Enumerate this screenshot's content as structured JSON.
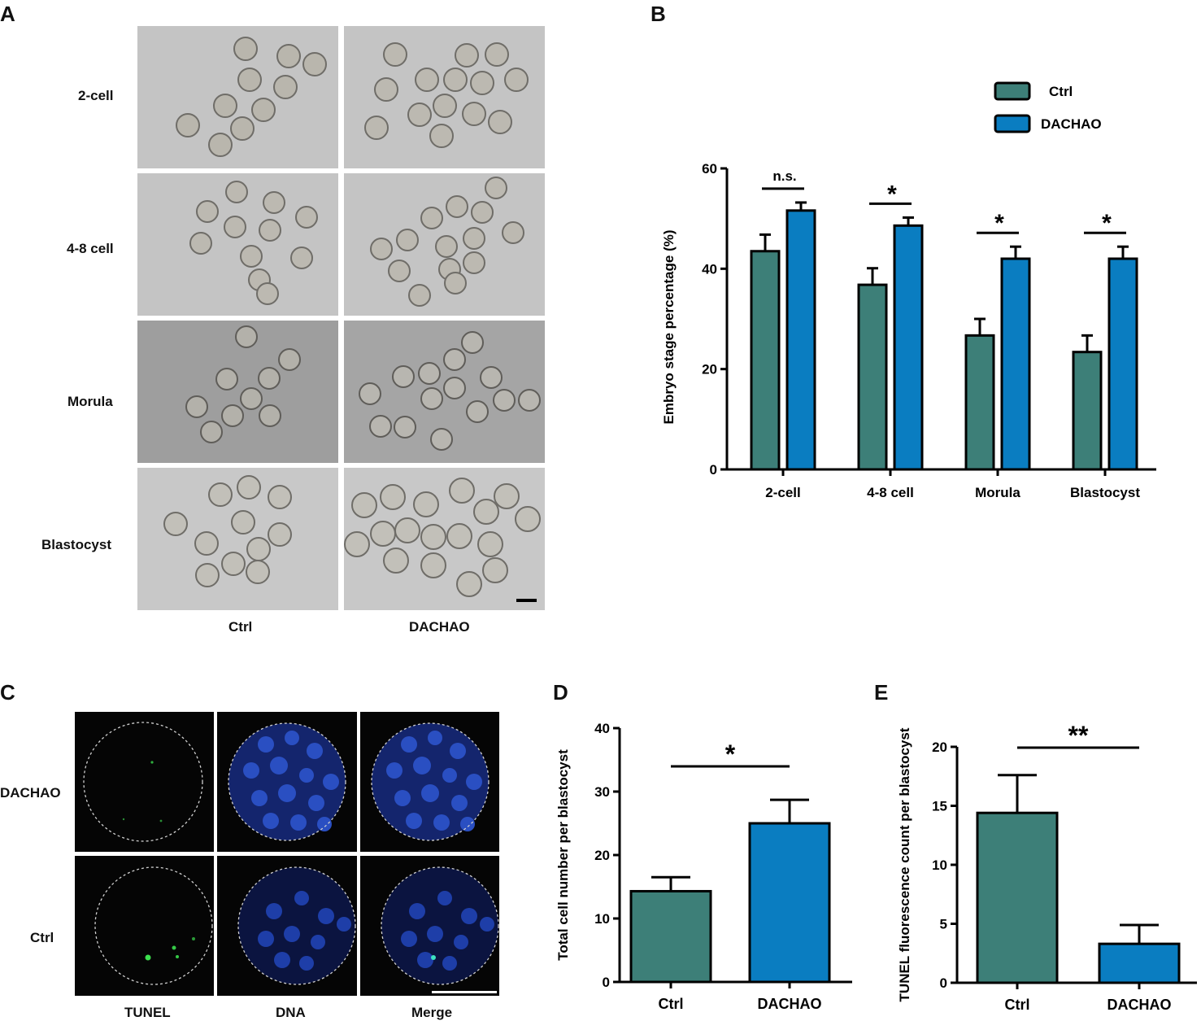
{
  "panels": {
    "a": "A",
    "b": "B",
    "c": "C",
    "d": "D",
    "e": "E"
  },
  "panel_a": {
    "row_labels": [
      "2-cell",
      "4-8 cell",
      "Morula",
      "Blastocyst"
    ],
    "col_labels": [
      "Ctrl",
      "DACHAO"
    ]
  },
  "panel_c": {
    "row_labels": [
      "DACHAO",
      "Ctrl"
    ],
    "col_labels": [
      "TUNEL",
      "DNA",
      "Merge"
    ]
  },
  "colors": {
    "ctrl": "#3d7f78",
    "dachao": "#0a7dc1"
  },
  "chart_data": [
    {
      "id": "B",
      "type": "bar",
      "ylabel": "Embryo stage percentage (%)",
      "ylim": [
        0,
        60
      ],
      "yticks": [
        0,
        20,
        40,
        60
      ],
      "categories": [
        "2-cell",
        "4-8 cell",
        "Morula",
        "Blastocyst"
      ],
      "series": [
        {
          "name": "Ctrl",
          "values": [
            43.5,
            36.8,
            26.7,
            23.4
          ],
          "errors": [
            3.3,
            3.3,
            3.3,
            3.3
          ]
        },
        {
          "name": "DACHAO",
          "values": [
            51.6,
            48.6,
            42.0,
            42.0
          ],
          "errors": [
            1.6,
            1.6,
            2.4,
            2.4
          ]
        }
      ],
      "significance": [
        "n.s.",
        "*",
        "*",
        "*"
      ],
      "legend": "top-right"
    },
    {
      "id": "D",
      "type": "bar",
      "ylabel": "Total cell number per blastocyst",
      "ylim": [
        0,
        40
      ],
      "yticks": [
        0,
        10,
        20,
        30,
        40
      ],
      "categories": [
        "Ctrl",
        "DACHAO"
      ],
      "values": [
        14.3,
        25.0
      ],
      "errors": [
        2.2,
        3.7
      ],
      "significance": "*"
    },
    {
      "id": "E",
      "type": "bar",
      "ylabel": "TUNEL fluorescence count per blastocyst",
      "ylim": [
        0,
        20
      ],
      "yticks": [
        0,
        5,
        10,
        15,
        20
      ],
      "categories": [
        "Ctrl",
        "DACHAO"
      ],
      "values": [
        14.4,
        3.3
      ],
      "errors": [
        3.2,
        1.6
      ],
      "significance": "**"
    }
  ]
}
